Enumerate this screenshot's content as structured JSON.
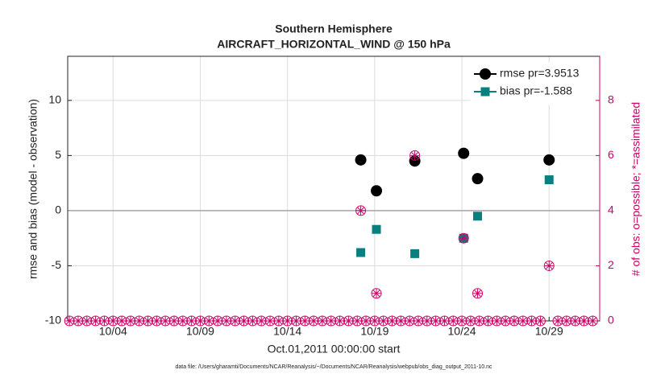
{
  "chart_data": {
    "type": "scatter",
    "title": [
      "Southern Hemisphere",
      "AIRCRAFT_HORIZONTAL_WIND @ 150 hPa"
    ],
    "xlabel": "Oct.01,2011 00:00:00 start",
    "ylabel": "rmse and bias (model - observation)",
    "y2label": "# of obs: o=possible; *=assimilated",
    "footnote": "data file: /Users/gharamti/Documents/NCAR/Reanalysis/~/Documents/NCAR/Reanalysis/webpub/obs_diag_output_2011-10.nc",
    "xlim": [
      0.4,
      30.9
    ],
    "xticks": [
      {
        "value": 3,
        "label": "10/04"
      },
      {
        "value": 8,
        "label": "10/09"
      },
      {
        "value": 13,
        "label": "10/14"
      },
      {
        "value": 18,
        "label": "10/19"
      },
      {
        "value": 23,
        "label": "10/24"
      },
      {
        "value": 28,
        "label": "10/29"
      }
    ],
    "ylim": [
      -10,
      14
    ],
    "yticks": [
      -10,
      -5,
      0,
      5,
      10
    ],
    "y2lim": [
      0,
      9.6
    ],
    "y2ticks": [
      0,
      2,
      4,
      6,
      8
    ],
    "hline": 0,
    "grid": true,
    "legend": "upper right",
    "series": [
      {
        "name": "rmse pr=3.9513",
        "color": "#000000",
        "marker": "circle",
        "x": [
          17.2,
          18.1,
          20.3,
          23.1,
          23.9,
          28.0
        ],
        "values": [
          4.6,
          1.8,
          4.5,
          5.2,
          2.9,
          4.6
        ]
      },
      {
        "name": "bias pr=-1.588",
        "color": "#0a7f7f",
        "marker": "square",
        "x": [
          17.2,
          18.1,
          20.3,
          23.1,
          23.9,
          28.0
        ],
        "values": [
          -3.8,
          -1.7,
          -3.9,
          -2.5,
          -0.5,
          2.8
        ]
      },
      {
        "color": "#cc0066",
        "marker": "open-circle",
        "axis": "y2",
        "x": [
          0.5,
          1,
          1.5,
          2,
          2.5,
          3,
          3.5,
          4,
          4.5,
          5,
          5.5,
          6,
          6.5,
          7,
          7.5,
          8,
          8.5,
          9,
          9.5,
          10,
          10.5,
          11,
          11.5,
          12,
          12.5,
          13,
          13.5,
          14,
          14.5,
          15,
          15.5,
          16,
          16.5,
          17,
          17.2,
          17.5,
          18,
          18.1,
          18.5,
          19,
          19.5,
          20,
          20.3,
          20.5,
          21,
          21.5,
          22,
          22.5,
          23,
          23.1,
          23.5,
          23.9,
          24,
          24.5,
          25,
          25.5,
          26,
          26.5,
          27,
          27.5,
          28,
          28.5,
          29,
          29.5,
          30,
          30.5
        ],
        "values": [
          0,
          0,
          0,
          0,
          0,
          0,
          0,
          0,
          0,
          0,
          0,
          0,
          0,
          0,
          0,
          0,
          0,
          0,
          0,
          0,
          0,
          0,
          0,
          0,
          0,
          0,
          0,
          0,
          0,
          0,
          0,
          0,
          0,
          0,
          4,
          0,
          0,
          1,
          0,
          0,
          0,
          0,
          6,
          0,
          0,
          0,
          0,
          0,
          0,
          3,
          0,
          1,
          0,
          0,
          0,
          0,
          0,
          0,
          0,
          0,
          2,
          0,
          0,
          0,
          0,
          0
        ]
      },
      {
        "color": "#cc0066",
        "marker": "asterisk",
        "axis": "y2",
        "x": [
          0.5,
          1,
          1.5,
          2,
          2.5,
          3,
          3.5,
          4,
          4.5,
          5,
          5.5,
          6,
          6.5,
          7,
          7.5,
          8,
          8.5,
          9,
          9.5,
          10,
          10.5,
          11,
          11.5,
          12,
          12.5,
          13,
          13.5,
          14,
          14.5,
          15,
          15.5,
          16,
          16.5,
          17,
          17.2,
          17.5,
          18,
          18.1,
          18.5,
          19,
          19.5,
          20,
          20.3,
          20.5,
          21,
          21.5,
          22,
          22.5,
          23,
          23.1,
          23.5,
          23.9,
          24,
          24.5,
          25,
          25.5,
          26,
          26.5,
          27,
          27.5,
          28,
          28.5,
          29,
          29.5,
          30,
          30.5
        ],
        "values": [
          0,
          0,
          0,
          0,
          0,
          0,
          0,
          0,
          0,
          0,
          0,
          0,
          0,
          0,
          0,
          0,
          0,
          0,
          0,
          0,
          0,
          0,
          0,
          0,
          0,
          0,
          0,
          0,
          0,
          0,
          0,
          0,
          0,
          0,
          4,
          0,
          0,
          1,
          0,
          0,
          0,
          0,
          6,
          0,
          0,
          0,
          0,
          0,
          0,
          3,
          0,
          1,
          0,
          0,
          0,
          0,
          0,
          0,
          0,
          0,
          2,
          0,
          0,
          0,
          0,
          0
        ]
      }
    ]
  }
}
